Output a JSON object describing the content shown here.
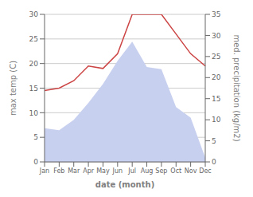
{
  "chart_data": {
    "type": "line",
    "xlabel": "date (month)",
    "ylabel": "max temp (C)",
    "y2label": "med. precipitation (kg/m2)",
    "categories": [
      "Jan",
      "Feb",
      "Mar",
      "Apr",
      "May",
      "Jun",
      "Jul",
      "Aug",
      "Sep",
      "Oct",
      "Nov",
      "Dec"
    ],
    "series": [
      {
        "type": "area",
        "axis": "y2",
        "color": "#c8d0f0",
        "values": [
          8.0,
          7.5,
          10.0,
          14.0,
          18.5,
          24.0,
          28.5,
          22.5,
          22.0,
          13.0,
          10.5,
          1.0
        ]
      },
      {
        "type": "line",
        "color": "#cc4444",
        "values": [
          14.5,
          15.0,
          16.5,
          19.5,
          19.0,
          22.0,
          30.0,
          30.0,
          30.0,
          26.0,
          22.0,
          19.5
        ]
      }
    ],
    "ylim": [
      0,
      30
    ],
    "yticks": [
      0,
      5,
      10,
      15,
      20,
      25,
      30
    ],
    "y2lim": [
      0,
      35
    ],
    "y2ticks": [
      0,
      5,
      10,
      15,
      20,
      25,
      30,
      35
    ],
    "grid": true
  }
}
